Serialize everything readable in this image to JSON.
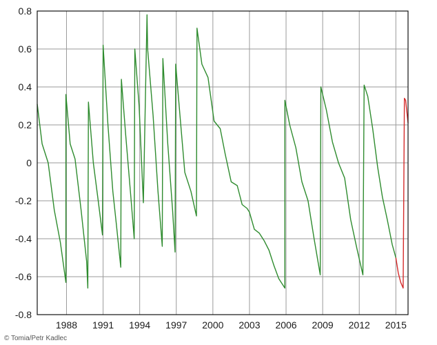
{
  "credit": "© Tomia/Petr Kadlec",
  "colors": {
    "series_main": "#2e8b2e",
    "series_recent": "#d42a2a",
    "grid": "#9a9a9a",
    "frame": "#111111"
  },
  "chart_data": {
    "type": "line",
    "title": "",
    "xlabel": "",
    "ylabel": "",
    "xlim": [
      1985.6,
      2016.0
    ],
    "ylim": [
      -0.8,
      0.8
    ],
    "grid": true,
    "legend": "none",
    "x_ticks": [
      1988,
      1991,
      1994,
      1997,
      2000,
      2003,
      2006,
      2009,
      2012,
      2015
    ],
    "x_tick_labels": [
      "1988",
      "1991",
      "1994",
      "1997",
      "2000",
      "2003",
      "2006",
      "2009",
      "2012",
      "2015"
    ],
    "y_ticks": [
      -0.8,
      -0.6,
      -0.4,
      -0.2,
      0,
      0.2,
      0.4,
      0.6,
      0.8
    ],
    "y_tick_labels": [
      "-0.8",
      "-0.6",
      "-0.4",
      "-0.2",
      "0",
      "0.2",
      "0.4",
      "0.6",
      "0.8"
    ],
    "series": [
      {
        "color": "#2e8b2e",
        "x": [
          1985.6,
          1986.0,
          1986.5,
          1987.0,
          1987.5,
          1987.95,
          1987.95,
          1988.3,
          1988.7,
          1989.2,
          1989.65,
          1989.75,
          1989.8,
          1990.2,
          1990.6,
          1990.95,
          1991.0,
          1991.4,
          1991.8,
          1992.1,
          1992.45,
          1992.5,
          1992.85,
          1993.3,
          1993.55,
          1993.6,
          1993.95,
          1994.3,
          1994.6,
          1994.65,
          1995.1,
          1995.5,
          1995.85,
          1995.9,
          1996.3,
          1996.7,
          1996.9,
          1996.95,
          1997.3,
          1997.7,
          1998.2,
          1998.65,
          1998.7,
          1999.1,
          1999.6,
          2000.1,
          2000.6,
          2001.0,
          2001.5,
          2002.0,
          2002.4,
          2002.8,
          2003.0,
          2003.4,
          2003.8,
          2004.2,
          2004.6,
          2005.0,
          2005.4,
          2005.9,
          2005.9,
          2006.3,
          2006.8,
          2007.3,
          2007.8,
          2008.3,
          2008.8,
          2008.85,
          2009.3,
          2009.8,
          2010.3,
          2010.8,
          2011.3,
          2011.8,
          2012.3,
          2012.4,
          2012.7,
          2013.1,
          2013.5,
          2013.9,
          2014.3,
          2014.7,
          2015.0
        ],
        "y": [
          0.31,
          0.1,
          0.0,
          -0.25,
          -0.42,
          -0.63,
          0.36,
          0.1,
          0.02,
          -0.25,
          -0.52,
          -0.66,
          0.32,
          0.0,
          -0.2,
          -0.38,
          0.62,
          0.2,
          -0.15,
          -0.33,
          -0.55,
          0.44,
          0.15,
          -0.2,
          -0.4,
          0.6,
          0.3,
          -0.21,
          0.78,
          0.6,
          0.25,
          -0.15,
          -0.44,
          0.55,
          0.1,
          -0.25,
          -0.47,
          0.52,
          0.25,
          -0.05,
          -0.15,
          -0.28,
          0.71,
          0.52,
          0.45,
          0.22,
          0.18,
          0.05,
          -0.1,
          -0.12,
          -0.22,
          -0.24,
          -0.26,
          -0.35,
          -0.37,
          -0.41,
          -0.46,
          -0.54,
          -0.61,
          -0.66,
          0.33,
          0.2,
          0.08,
          -0.1,
          -0.2,
          -0.4,
          -0.59,
          0.4,
          0.28,
          0.11,
          0.0,
          -0.08,
          -0.3,
          -0.45,
          -0.59,
          0.41,
          0.35,
          0.18,
          -0.02,
          -0.18,
          -0.3,
          -0.43,
          -0.5
        ]
      },
      {
        "color": "#d42a2a",
        "x": [
          2015.0,
          2015.2,
          2015.4,
          2015.6,
          2015.7,
          2015.8,
          2016.0
        ],
        "y": [
          -0.5,
          -0.58,
          -0.63,
          -0.66,
          0.34,
          0.33,
          0.21
        ]
      }
    ]
  }
}
